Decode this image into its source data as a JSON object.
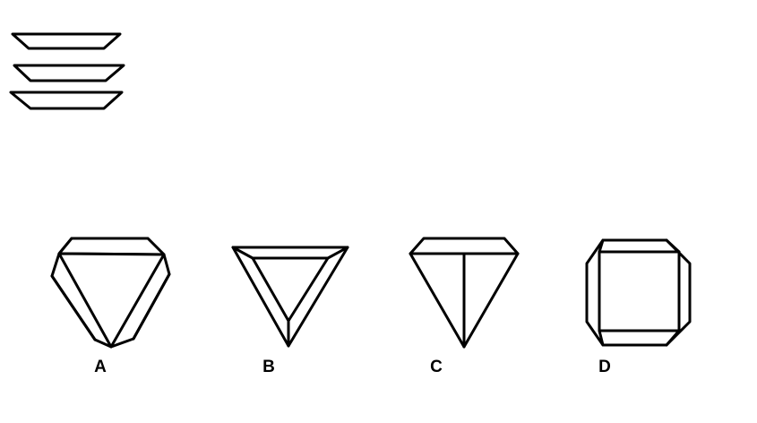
{
  "options": [
    {
      "label": "A"
    },
    {
      "label": "B"
    },
    {
      "label": "C"
    },
    {
      "label": "D"
    }
  ],
  "colors": {
    "stroke": "#000000",
    "background": "#ffffff"
  }
}
